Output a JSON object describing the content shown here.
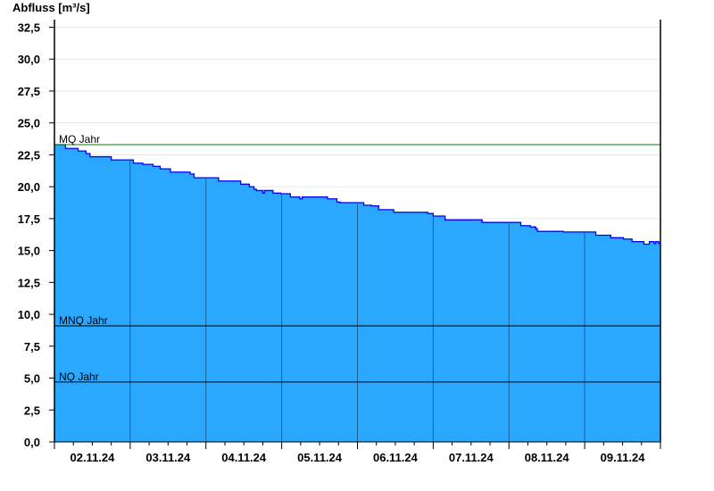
{
  "chart_data": {
    "type": "area",
    "title": "",
    "ylabel": "Abfluss [m³/s]",
    "xlabel": "",
    "ylim": [
      0,
      32.5
    ],
    "y_tick_step": 2.5,
    "y_tick_labels": [
      "0,0",
      "2,5",
      "5,0",
      "7,5",
      "10,0",
      "12,5",
      "15,0",
      "17,5",
      "20,0",
      "22,5",
      "25,0",
      "27,5",
      "30,0",
      "32,5"
    ],
    "xlim": [
      "2024-11-02T00:00",
      "2024-11-10T00:00"
    ],
    "x_tick_labels": [
      "02.11.24",
      "03.11.24",
      "04.11.24",
      "05.11.24",
      "06.11.24",
      "07.11.24",
      "08.11.24",
      "09.11.24"
    ],
    "grid": "horizontal",
    "step": true,
    "colors": {
      "fill": "#2aa8ff",
      "line": "#0000ff",
      "day_lines": "#1f5f8f",
      "grid": "#e6e6e6"
    },
    "series": [
      {
        "points": [
          [
            "2024-11-02T00:00",
            23.3
          ],
          [
            "2024-11-02T03:30",
            23.0
          ],
          [
            "2024-11-02T07:30",
            22.8
          ],
          [
            "2024-11-02T10:00",
            22.6
          ],
          [
            "2024-11-02T11:15",
            22.35
          ],
          [
            "2024-11-02T18:00",
            22.1
          ],
          [
            "2024-11-03T01:00",
            21.85
          ],
          [
            "2024-11-03T04:00",
            21.75
          ],
          [
            "2024-11-03T07:15",
            21.6
          ],
          [
            "2024-11-03T09:30",
            21.4
          ],
          [
            "2024-11-03T12:45",
            21.15
          ],
          [
            "2024-11-03T19:00",
            21.0
          ],
          [
            "2024-11-03T20:15",
            20.7
          ],
          [
            "2024-11-04T04:00",
            20.45
          ],
          [
            "2024-11-04T11:00",
            20.2
          ],
          [
            "2024-11-04T13:45",
            20.0
          ],
          [
            "2024-11-04T15:15",
            19.8
          ],
          [
            "2024-11-04T16:00",
            19.7
          ],
          [
            "2024-11-04T18:00",
            19.5
          ],
          [
            "2024-11-04T18:30",
            19.7
          ],
          [
            "2024-11-04T21:15",
            19.5
          ],
          [
            "2024-11-04T23:45",
            19.45
          ],
          [
            "2024-11-05T02:45",
            19.2
          ],
          [
            "2024-11-05T05:45",
            19.05
          ],
          [
            "2024-11-05T06:30",
            19.2
          ],
          [
            "2024-11-05T14:30",
            19.05
          ],
          [
            "2024-11-05T17:30",
            18.8
          ],
          [
            "2024-11-05T18:30",
            18.75
          ],
          [
            "2024-11-06T02:00",
            18.55
          ],
          [
            "2024-11-06T04:30",
            18.5
          ],
          [
            "2024-11-06T06:45",
            18.2
          ],
          [
            "2024-11-06T11:30",
            18.0
          ],
          [
            "2024-11-06T22:15",
            17.9
          ],
          [
            "2024-11-07T00:00",
            17.7
          ],
          [
            "2024-11-07T03:45",
            17.4
          ],
          [
            "2024-11-07T15:30",
            17.2
          ],
          [
            "2024-11-08T03:45",
            16.95
          ],
          [
            "2024-11-08T06:45",
            16.85
          ],
          [
            "2024-11-08T08:30",
            16.7
          ],
          [
            "2024-11-08T09:00",
            16.5
          ],
          [
            "2024-11-08T17:15",
            16.45
          ],
          [
            "2024-11-09T03:30",
            16.2
          ],
          [
            "2024-11-09T08:15",
            16.0
          ],
          [
            "2024-11-09T12:15",
            15.9
          ],
          [
            "2024-11-09T15:00",
            15.7
          ],
          [
            "2024-11-09T18:45",
            15.5
          ],
          [
            "2024-11-09T20:30",
            15.7
          ],
          [
            "2024-11-09T22:00",
            15.55
          ],
          [
            "2024-11-09T22:30",
            15.7
          ],
          [
            "2024-11-09T23:30",
            15.55
          ]
        ]
      }
    ],
    "reference_lines": [
      {
        "label": "MQ Jahr",
        "value": 23.3,
        "color": "#008000"
      },
      {
        "label": "MNQ Jahr",
        "value": 9.1,
        "color": "#000000"
      },
      {
        "label": "NQ Jahr",
        "value": 4.7,
        "color": "#000000"
      }
    ]
  }
}
